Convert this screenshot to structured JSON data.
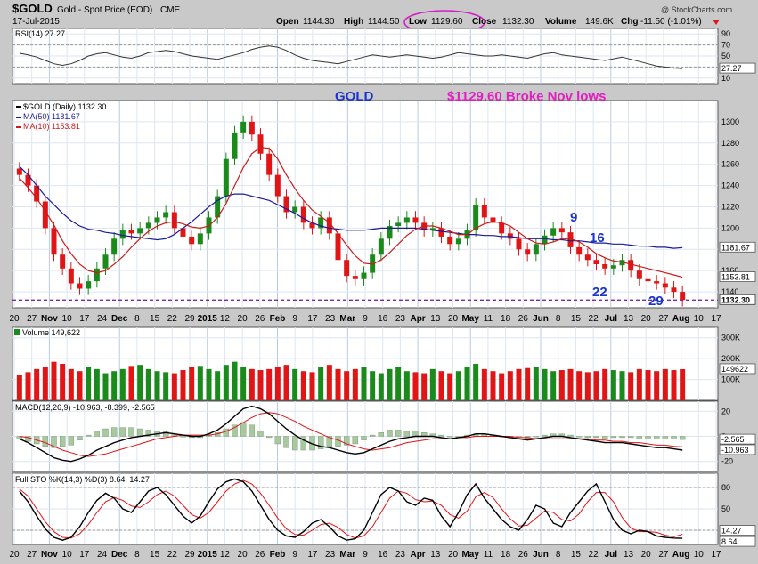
{
  "header": {
    "symbol": "$GOLD",
    "name": "Gold - Spot Price (EOD)",
    "exchange": "CME",
    "date": "17-Jul-2015",
    "open_label": "Open",
    "open": "1144.30",
    "high_label": "High",
    "high": "1144.50",
    "low_label": "Low",
    "low": "1129.60",
    "close_label": "Close",
    "close": "1132.30",
    "volume_label": "Volume",
    "volume": "149.6K",
    "chg_label": "Chg",
    "chg": "-11.50 (-1.01%)",
    "watermark": "@ StockCharts.com"
  },
  "colors": {
    "background": "#c9c9c9",
    "panel": "#ffffff",
    "up": "#1a8a1a",
    "down": "#e01515",
    "ma50": "#1a1a99",
    "ma10": "#cc1a1a",
    "annotation_blue": "#1a33cc",
    "annotation_magenta": "#e020c0",
    "last_price_line": "#7a2a9a"
  },
  "annotations": {
    "gold_label": "GOLD",
    "broke_label": "$1129.60 Broke Nov lows",
    "wave_9": "9",
    "wave_16": "16",
    "wave_22": "22",
    "wave_29": "29"
  },
  "chart_data": [
    {
      "type": "line",
      "title": "RSI(14)",
      "title_value": "27.27",
      "ylim": [
        0,
        100
      ],
      "yticks": [
        10,
        30,
        50,
        70,
        90
      ],
      "last_label": "27.27",
      "values": [
        55,
        52,
        48,
        42,
        36,
        33,
        36,
        42,
        50,
        54,
        56,
        52,
        48,
        46,
        50,
        56,
        58,
        60,
        58,
        54,
        50,
        48,
        46,
        44,
        48,
        52,
        56,
        62,
        66,
        68,
        66,
        60,
        52,
        46,
        42,
        40,
        38,
        36,
        40,
        44,
        48,
        52,
        50,
        48,
        50,
        52,
        50,
        48,
        46,
        48,
        52,
        56,
        54,
        52,
        50,
        50,
        52,
        50,
        48,
        46,
        50,
        54,
        56,
        52,
        50,
        48,
        46,
        44,
        42,
        45,
        48,
        44,
        40,
        36,
        32,
        30,
        28,
        27.27
      ]
    },
    {
      "type": "candlestick",
      "title": "$GOLD (Daily)",
      "title_value": "1132.30",
      "ylim": [
        1125,
        1320
      ],
      "yticks": [
        1140,
        1160,
        1180,
        1200,
        1220,
        1240,
        1260,
        1280,
        1300
      ],
      "series_labels": [
        {
          "name": "$GOLD (Daily)",
          "value": "1132.30"
        },
        {
          "name": "MA(50)",
          "value": "1181.67"
        },
        {
          "name": "MA(10)",
          "value": "1153.81"
        }
      ],
      "price_labels": {
        "ma50": "1181.67",
        "ma10": "1153.81",
        "last": "1132.30"
      },
      "x_ticks": [
        "20",
        "27",
        "Nov",
        "10",
        "17",
        "24",
        "Dec",
        "8",
        "15",
        "22",
        "29",
        "2015",
        "12",
        "20",
        "26",
        "Feb",
        "9",
        "17",
        "23",
        "Mar",
        "9",
        "16",
        "23",
        "Apr",
        "13",
        "20",
        "May",
        "11",
        "18",
        "26",
        "Jun",
        "8",
        "15",
        "22",
        "Jul",
        "13",
        "20",
        "27",
        "Aug",
        "10",
        "17"
      ],
      "x_ticks_bold": [
        "Nov",
        "Dec",
        "2015",
        "Feb",
        "Mar",
        "Apr",
        "May",
        "Jun",
        "Jul",
        "Aug"
      ],
      "closes": [
        1250,
        1240,
        1225,
        1200,
        1175,
        1162,
        1148,
        1143,
        1150,
        1162,
        1175,
        1190,
        1198,
        1195,
        1200,
        1205,
        1210,
        1215,
        1200,
        1192,
        1185,
        1195,
        1210,
        1230,
        1265,
        1290,
        1300,
        1288,
        1270,
        1250,
        1230,
        1215,
        1220,
        1205,
        1200,
        1210,
        1195,
        1170,
        1155,
        1152,
        1158,
        1175,
        1190,
        1202,
        1205,
        1210,
        1205,
        1198,
        1200,
        1192,
        1185,
        1190,
        1198,
        1222,
        1210,
        1205,
        1195,
        1190,
        1180,
        1175,
        1185,
        1193,
        1200,
        1196,
        1182,
        1175,
        1170,
        1166,
        1162,
        1165,
        1170,
        1160,
        1152,
        1150,
        1148,
        1144,
        1140,
        1132.3
      ],
      "ma50": [
        1258,
        1250,
        1240,
        1230,
        1222,
        1214,
        1207,
        1202,
        1199,
        1198,
        1196,
        1195,
        1193,
        1192,
        1191,
        1190,
        1189,
        1190,
        1194,
        1200,
        1206,
        1213,
        1220,
        1226,
        1230,
        1232,
        1232,
        1230,
        1228,
        1226,
        1222,
        1218,
        1214,
        1209,
        1205,
        1202,
        1200,
        1199,
        1198,
        1198,
        1198,
        1199,
        1200,
        1200,
        1200,
        1200,
        1200,
        1199,
        1198,
        1197,
        1196,
        1195,
        1194,
        1194,
        1193,
        1193,
        1192,
        1192,
        1191,
        1190,
        1190,
        1190,
        1189,
        1189,
        1188,
        1188,
        1187,
        1186,
        1186,
        1185,
        1185,
        1184,
        1183,
        1183,
        1182,
        1182,
        1181,
        1181.67
      ],
      "ma10": [
        1247,
        1238,
        1228,
        1216,
        1203,
        1188,
        1176,
        1166,
        1160,
        1158,
        1160,
        1166,
        1173,
        1182,
        1190,
        1197,
        1202,
        1205,
        1206,
        1204,
        1201,
        1200,
        1202,
        1210,
        1223,
        1240,
        1257,
        1270,
        1276,
        1275,
        1265,
        1250,
        1237,
        1226,
        1217,
        1211,
        1205,
        1195,
        1184,
        1174,
        1167,
        1166,
        1170,
        1177,
        1185,
        1193,
        1199,
        1202,
        1202,
        1200,
        1197,
        1194,
        1194,
        1200,
        1204,
        1206,
        1205,
        1202,
        1196,
        1190,
        1186,
        1185,
        1187,
        1190,
        1190,
        1187,
        1182,
        1176,
        1172,
        1169,
        1168,
        1166,
        1164,
        1162,
        1160,
        1158,
        1156,
        1153.81
      ]
    },
    {
      "type": "bar",
      "title": "Volume",
      "title_value": "149,622",
      "ylim": [
        0,
        350
      ],
      "yticks_labels": [
        "100K",
        "200K",
        "300K"
      ],
      "yticks": [
        100,
        200,
        300
      ],
      "last_label": "149622",
      "values": [
        120,
        135,
        150,
        160,
        185,
        175,
        150,
        140,
        160,
        150,
        130,
        140,
        150,
        165,
        170,
        150,
        140,
        135,
        130,
        145,
        160,
        165,
        150,
        140,
        170,
        185,
        160,
        150,
        145,
        150,
        160,
        170,
        150,
        140,
        135,
        160,
        170,
        150,
        140,
        150,
        160,
        140,
        130,
        150,
        160,
        140,
        135,
        130,
        150,
        140,
        130,
        140,
        160,
        175,
        150,
        140,
        130,
        140,
        150,
        155,
        160,
        150,
        140,
        145,
        150,
        140,
        135,
        140,
        150,
        145,
        140,
        135,
        150,
        145,
        140,
        150,
        145,
        149.622
      ]
    },
    {
      "type": "line",
      "title": "MACD(12,26,9)",
      "title_values": [
        "-10.963",
        "-8.399",
        "-2.565"
      ],
      "ylim": [
        -28,
        28
      ],
      "yticks": [
        -20,
        0,
        20
      ],
      "last_labels": [
        "-2.565",
        "-10.963"
      ],
      "macd": [
        -2,
        -5,
        -9,
        -13,
        -17,
        -19,
        -20,
        -18,
        -15,
        -11,
        -8,
        -5,
        -3,
        -1,
        0,
        1,
        2,
        3,
        2,
        1,
        0,
        0,
        2,
        5,
        10,
        16,
        22,
        24,
        22,
        18,
        12,
        6,
        1,
        -3,
        -6,
        -8,
        -9,
        -11,
        -13,
        -14,
        -13,
        -10,
        -7,
        -4,
        -2,
        -1,
        0,
        0,
        0,
        -1,
        -2,
        -1,
        0,
        2,
        2,
        1,
        0,
        -1,
        -2,
        -3,
        -2,
        -1,
        0,
        0,
        -1,
        -2,
        -3,
        -4,
        -5,
        -5,
        -5,
        -6,
        -7,
        -8,
        -9,
        -9,
        -10,
        -10.963
      ],
      "signal": [
        0,
        -1,
        -3,
        -5,
        -8,
        -11,
        -13,
        -15,
        -16,
        -15,
        -14,
        -12,
        -10,
        -8,
        -6,
        -4,
        -2,
        -1,
        0,
        1,
        1,
        1,
        1,
        2,
        4,
        7,
        11,
        15,
        18,
        19,
        18,
        15,
        12,
        8,
        5,
        2,
        -1,
        -3,
        -6,
        -8,
        -10,
        -11,
        -10,
        -9,
        -7,
        -5,
        -4,
        -3,
        -2,
        -2,
        -2,
        -1,
        -1,
        0,
        0,
        0,
        0,
        0,
        -1,
        -1,
        -2,
        -2,
        -2,
        -2,
        -2,
        -2,
        -2,
        -3,
        -3,
        -4,
        -4,
        -5,
        -5,
        -6,
        -7,
        -7,
        -8,
        -8.399
      ],
      "histogram": [
        -2,
        -4,
        -6,
        -8,
        -9,
        -8,
        -7,
        -3,
        1,
        4,
        6,
        7,
        7,
        7,
        6,
        5,
        4,
        4,
        2,
        0,
        -1,
        -1,
        1,
        3,
        6,
        9,
        11,
        9,
        4,
        -1,
        -6,
        -9,
        -11,
        -11,
        -11,
        -10,
        -8,
        -8,
        -7,
        -6,
        -3,
        1,
        3,
        5,
        5,
        4,
        4,
        3,
        2,
        1,
        0,
        0,
        1,
        2,
        2,
        1,
        0,
        -1,
        -1,
        -2,
        0,
        1,
        2,
        2,
        1,
        0,
        -1,
        -1,
        -2,
        -1,
        -1,
        -1,
        -2,
        -2,
        -2,
        -2,
        -2,
        -2.565
      ]
    },
    {
      "type": "line",
      "title": "Full STO %K(14,3) %D(3)",
      "title_values": [
        "8.64",
        "14.27"
      ],
      "ylim": [
        0,
        100
      ],
      "yticks": [
        20,
        50,
        80
      ],
      "last_labels": [
        "14.27",
        "8.64"
      ],
      "k": [
        75,
        60,
        40,
        22,
        10,
        6,
        10,
        25,
        45,
        62,
        72,
        65,
        50,
        45,
        60,
        75,
        80,
        70,
        55,
        40,
        30,
        40,
        60,
        78,
        88,
        92,
        88,
        75,
        55,
        35,
        20,
        12,
        10,
        18,
        30,
        35,
        25,
        12,
        6,
        8,
        20,
        45,
        70,
        80,
        75,
        60,
        55,
        65,
        62,
        40,
        25,
        45,
        70,
        85,
        65,
        50,
        35,
        25,
        20,
        35,
        55,
        50,
        30,
        25,
        45,
        60,
        75,
        85,
        60,
        35,
        20,
        15,
        20,
        18,
        12,
        10,
        9,
        8.64
      ],
      "d": [
        78,
        68,
        50,
        32,
        18,
        10,
        9,
        15,
        28,
        45,
        60,
        66,
        62,
        54,
        52,
        60,
        70,
        75,
        68,
        55,
        42,
        37,
        45,
        60,
        75,
        85,
        90,
        85,
        72,
        55,
        37,
        22,
        14,
        13,
        20,
        28,
        30,
        24,
        14,
        9,
        12,
        25,
        45,
        65,
        75,
        72,
        63,
        60,
        61,
        55,
        42,
        37,
        47,
        67,
        73,
        66,
        50,
        36,
        26,
        27,
        37,
        47,
        45,
        35,
        33,
        43,
        60,
        73,
        73,
        60,
        38,
        23,
        18,
        18,
        17,
        13,
        11,
        14.27
      ]
    }
  ]
}
